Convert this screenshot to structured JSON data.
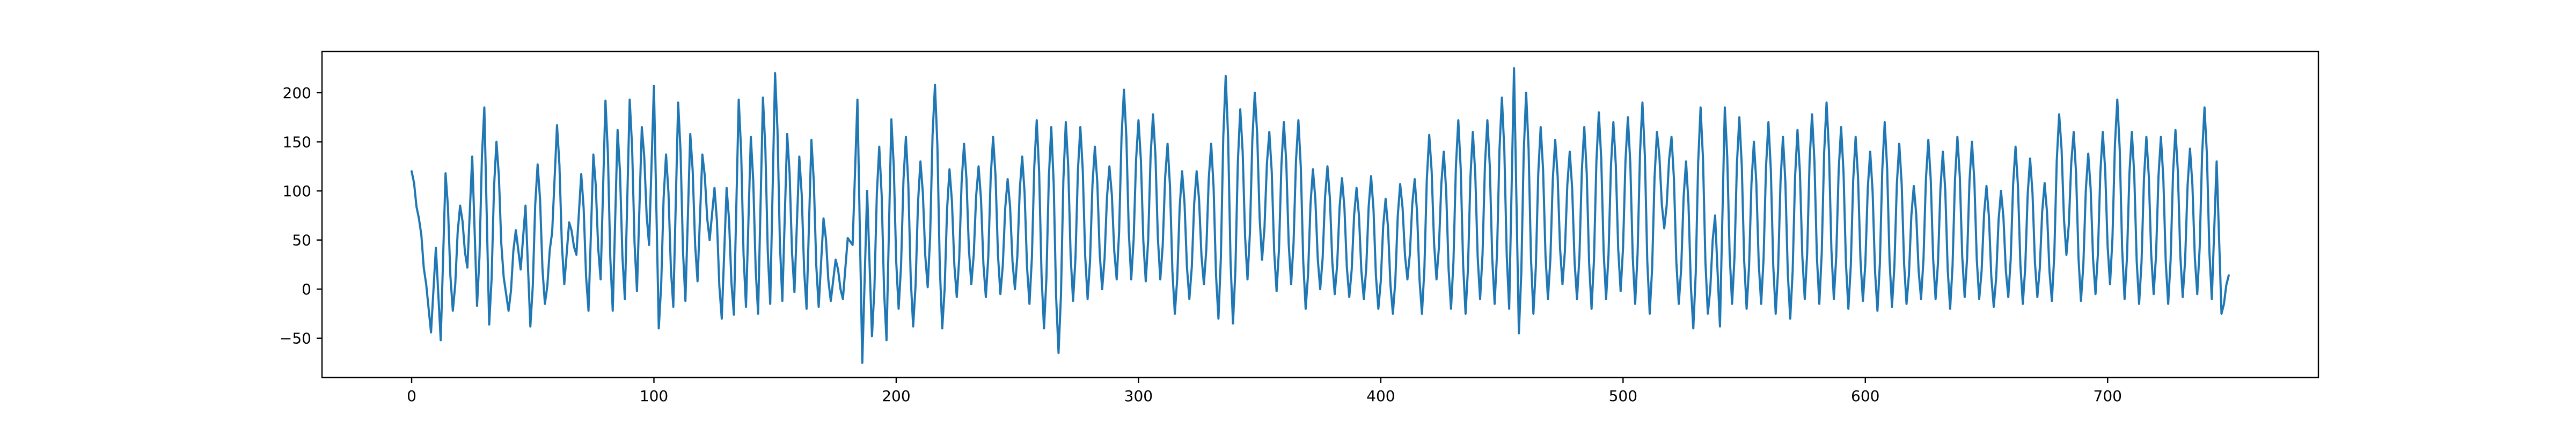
{
  "chart_data": {
    "type": "line",
    "title": "",
    "xlabel": "",
    "ylabel": "",
    "xlim": [
      -37,
      787
    ],
    "ylim": [
      -90,
      242
    ],
    "x_ticks": [
      0,
      100,
      200,
      300,
      400,
      500,
      600,
      700
    ],
    "y_ticks": [
      -50,
      0,
      50,
      100,
      150,
      200
    ],
    "grid": false,
    "legend": "none",
    "color": "#1f77b4",
    "series": [
      {
        "x_start": 0,
        "x_step": 1,
        "peak_points": [
          [
            0,
            120
          ],
          [
            3,
            72
          ],
          [
            6,
            5
          ],
          [
            8,
            -44
          ],
          [
            10,
            42
          ],
          [
            12,
            -52
          ],
          [
            14,
            118
          ],
          [
            17,
            -22
          ],
          [
            20,
            85
          ],
          [
            23,
            22
          ],
          [
            25,
            135
          ],
          [
            27,
            -17
          ],
          [
            30,
            185
          ],
          [
            32,
            -36
          ],
          [
            35,
            150
          ],
          [
            38,
            12
          ],
          [
            40,
            -22
          ],
          [
            43,
            60
          ],
          [
            45,
            20
          ],
          [
            47,
            85
          ],
          [
            49,
            -38
          ],
          [
            52,
            127
          ],
          [
            55,
            -15
          ],
          [
            58,
            58
          ],
          [
            60,
            167
          ],
          [
            63,
            5
          ],
          [
            65,
            68
          ],
          [
            68,
            35
          ],
          [
            70,
            117
          ],
          [
            73,
            -22
          ],
          [
            75,
            137
          ],
          [
            78,
            10
          ],
          [
            80,
            192
          ],
          [
            83,
            -22
          ],
          [
            85,
            162
          ],
          [
            88,
            -10
          ],
          [
            90,
            193
          ],
          [
            93,
            -2
          ],
          [
            95,
            165
          ],
          [
            98,
            45
          ],
          [
            100,
            207
          ],
          [
            102,
            -40
          ],
          [
            105,
            137
          ],
          [
            108,
            -18
          ],
          [
            110,
            190
          ],
          [
            113,
            -12
          ],
          [
            115,
            158
          ],
          [
            118,
            8
          ],
          [
            120,
            137
          ],
          [
            123,
            50
          ],
          [
            125,
            103
          ],
          [
            128,
            -30
          ],
          [
            130,
            103
          ],
          [
            133,
            -26
          ],
          [
            135,
            193
          ],
          [
            138,
            -18
          ],
          [
            140,
            155
          ],
          [
            143,
            -25
          ],
          [
            145,
            195
          ],
          [
            148,
            -15
          ],
          [
            150,
            220
          ],
          [
            153,
            -12
          ],
          [
            155,
            158
          ],
          [
            158,
            -3
          ],
          [
            160,
            135
          ],
          [
            163,
            -20
          ],
          [
            165,
            152
          ],
          [
            168,
            -18
          ],
          [
            170,
            72
          ],
          [
            173,
            -12
          ],
          [
            175,
            30
          ],
          [
            178,
            -10
          ],
          [
            180,
            52
          ],
          [
            182,
            45
          ],
          [
            184,
            193
          ],
          [
            186,
            -75
          ],
          [
            188,
            100
          ],
          [
            190,
            -48
          ],
          [
            193,
            145
          ],
          [
            196,
            -52
          ],
          [
            198,
            173
          ],
          [
            201,
            -20
          ],
          [
            204,
            155
          ],
          [
            207,
            -38
          ],
          [
            210,
            130
          ],
          [
            213,
            2
          ],
          [
            216,
            208
          ],
          [
            219,
            -40
          ],
          [
            222,
            122
          ],
          [
            225,
            -8
          ],
          [
            228,
            148
          ],
          [
            231,
            5
          ],
          [
            234,
            125
          ],
          [
            237,
            -8
          ],
          [
            240,
            155
          ],
          [
            243,
            -5
          ],
          [
            246,
            112
          ],
          [
            249,
            0
          ],
          [
            252,
            135
          ],
          [
            255,
            -15
          ],
          [
            258,
            172
          ],
          [
            261,
            -40
          ],
          [
            264,
            165
          ],
          [
            267,
            -65
          ],
          [
            270,
            170
          ],
          [
            273,
            -12
          ],
          [
            276,
            165
          ],
          [
            279,
            -10
          ],
          [
            282,
            145
          ],
          [
            285,
            0
          ],
          [
            288,
            125
          ],
          [
            291,
            10
          ],
          [
            294,
            203
          ],
          [
            297,
            10
          ],
          [
            300,
            172
          ],
          [
            303,
            8
          ],
          [
            306,
            178
          ],
          [
            309,
            10
          ],
          [
            312,
            148
          ],
          [
            315,
            -25
          ],
          [
            318,
            120
          ],
          [
            321,
            -10
          ],
          [
            324,
            120
          ],
          [
            327,
            5
          ],
          [
            330,
            148
          ],
          [
            333,
            -30
          ],
          [
            336,
            217
          ],
          [
            339,
            -35
          ],
          [
            342,
            183
          ],
          [
            345,
            10
          ],
          [
            348,
            200
          ],
          [
            351,
            30
          ],
          [
            354,
            160
          ],
          [
            357,
            -2
          ],
          [
            360,
            170
          ],
          [
            363,
            5
          ],
          [
            366,
            172
          ],
          [
            369,
            -20
          ],
          [
            372,
            122
          ],
          [
            375,
            0
          ],
          [
            378,
            125
          ],
          [
            381,
            -5
          ],
          [
            384,
            113
          ],
          [
            387,
            -8
          ],
          [
            390,
            103
          ],
          [
            393,
            -10
          ],
          [
            396,
            115
          ],
          [
            399,
            -20
          ],
          [
            402,
            92
          ],
          [
            405,
            -25
          ],
          [
            408,
            107
          ],
          [
            411,
            10
          ],
          [
            414,
            112
          ],
          [
            417,
            -25
          ],
          [
            420,
            157
          ],
          [
            423,
            10
          ],
          [
            426,
            140
          ],
          [
            429,
            -20
          ],
          [
            432,
            172
          ],
          [
            435,
            -25
          ],
          [
            438,
            160
          ],
          [
            441,
            -10
          ],
          [
            444,
            172
          ],
          [
            447,
            -15
          ],
          [
            450,
            195
          ],
          [
            453,
            -20
          ],
          [
            455,
            225
          ],
          [
            457,
            -45
          ],
          [
            460,
            200
          ],
          [
            463,
            -25
          ],
          [
            466,
            165
          ],
          [
            469,
            -10
          ],
          [
            472,
            152
          ],
          [
            475,
            5
          ],
          [
            478,
            140
          ],
          [
            481,
            -10
          ],
          [
            484,
            165
          ],
          [
            487,
            -20
          ],
          [
            490,
            180
          ],
          [
            493,
            -10
          ],
          [
            496,
            170
          ],
          [
            499,
            -2
          ],
          [
            502,
            175
          ],
          [
            505,
            -15
          ],
          [
            508,
            190
          ],
          [
            511,
            -25
          ],
          [
            514,
            160
          ],
          [
            517,
            62
          ],
          [
            520,
            155
          ],
          [
            523,
            -15
          ],
          [
            526,
            130
          ],
          [
            529,
            -40
          ],
          [
            532,
            185
          ],
          [
            535,
            -25
          ],
          [
            538,
            75
          ],
          [
            540,
            -38
          ],
          [
            542,
            185
          ],
          [
            545,
            -15
          ],
          [
            548,
            175
          ],
          [
            551,
            -20
          ],
          [
            554,
            150
          ],
          [
            557,
            -15
          ],
          [
            560,
            170
          ],
          [
            563,
            -25
          ],
          [
            566,
            155
          ],
          [
            569,
            -30
          ],
          [
            572,
            162
          ],
          [
            575,
            -10
          ],
          [
            578,
            178
          ],
          [
            581,
            -15
          ],
          [
            584,
            190
          ],
          [
            587,
            -10
          ],
          [
            590,
            165
          ],
          [
            593,
            -20
          ],
          [
            596,
            155
          ],
          [
            599,
            -12
          ],
          [
            602,
            140
          ],
          [
            605,
            -22
          ],
          [
            608,
            170
          ],
          [
            611,
            -18
          ],
          [
            614,
            148
          ],
          [
            617,
            -15
          ],
          [
            620,
            105
          ],
          [
            623,
            -10
          ],
          [
            626,
            152
          ],
          [
            629,
            -10
          ],
          [
            632,
            140
          ],
          [
            635,
            -20
          ],
          [
            638,
            155
          ],
          [
            641,
            -8
          ],
          [
            644,
            150
          ],
          [
            647,
            -10
          ],
          [
            650,
            105
          ],
          [
            653,
            -18
          ],
          [
            656,
            100
          ],
          [
            659,
            -8
          ],
          [
            662,
            145
          ],
          [
            665,
            -15
          ],
          [
            668,
            133
          ],
          [
            671,
            -8
          ],
          [
            674,
            108
          ],
          [
            677,
            -12
          ],
          [
            680,
            178
          ],
          [
            683,
            35
          ],
          [
            686,
            160
          ],
          [
            689,
            -12
          ],
          [
            692,
            138
          ],
          [
            695,
            -5
          ],
          [
            698,
            160
          ],
          [
            701,
            5
          ],
          [
            704,
            193
          ],
          [
            707,
            -10
          ],
          [
            710,
            160
          ],
          [
            713,
            -15
          ],
          [
            716,
            155
          ],
          [
            719,
            -5
          ],
          [
            722,
            155
          ],
          [
            725,
            -15
          ],
          [
            728,
            162
          ],
          [
            731,
            -8
          ],
          [
            734,
            143
          ],
          [
            737,
            -5
          ],
          [
            740,
            185
          ],
          [
            743,
            -10
          ],
          [
            745,
            130
          ],
          [
            747,
            -25
          ],
          [
            750,
            14
          ]
        ]
      }
    ]
  }
}
